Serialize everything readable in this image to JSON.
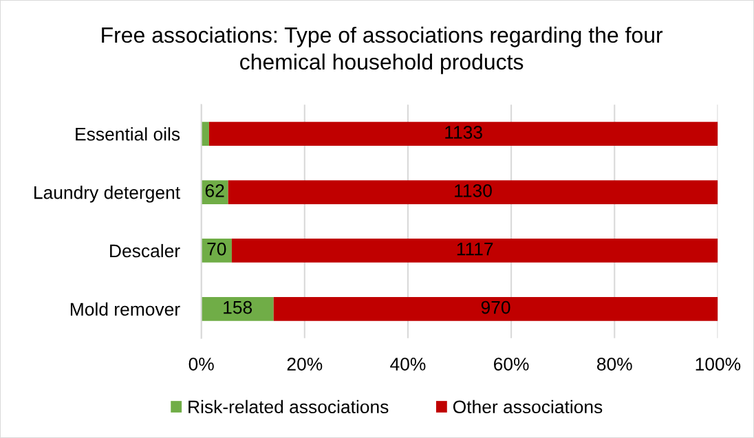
{
  "chart_data": {
    "type": "bar",
    "orientation": "horizontal",
    "stacked": true,
    "title": "Free associations: Type of associations regarding the four\nchemical household products",
    "categories": [
      "Essential oils",
      "Laundry detergent",
      "Descaler",
      "Mold remover"
    ],
    "series": [
      {
        "name": "Risk-related associations",
        "color": "#70ad47",
        "values": [
          1.5,
          5.2,
          5.9,
          14.0
        ]
      },
      {
        "name": "Other associations",
        "color": "#c00000",
        "values": [
          98.5,
          94.8,
          94.1,
          86.0
        ]
      }
    ],
    "annotations": [
      {
        "text": "62",
        "x": 5.2,
        "y": "Laundry detergent"
      },
      {
        "text": "70",
        "x": 5.9,
        "y": "Descaler"
      },
      {
        "text": "158",
        "x": 14.0,
        "y": "Mold remover"
      },
      "1133",
      "1130",
      "1117",
      "970"
    ],
    "xlim": [
      0,
      100
    ],
    "xticks": [
      {
        "value": 0,
        "label": "0%"
      },
      {
        "value": 20,
        "label": "20%"
      },
      {
        "value": 40,
        "label": "40%"
      },
      {
        "value": 60,
        "label": "60%"
      },
      {
        "value": 80,
        "label": "80%"
      },
      {
        "value": 100,
        "label": "100%"
      }
    ],
    "grid": "x",
    "legend": "bottom"
  }
}
